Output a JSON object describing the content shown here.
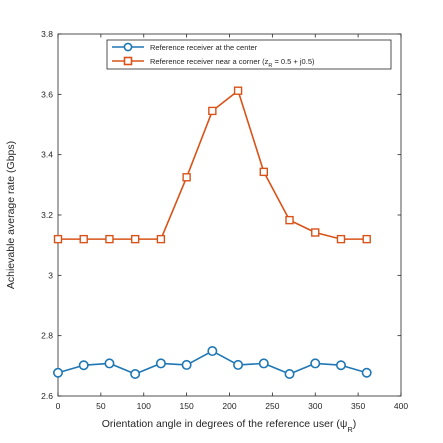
{
  "chart_data": {
    "type": "line",
    "xlabel": "Orientation angle in degrees of the reference user (ψ",
    "xlabel_sub": "R",
    "xlabel_close": ")",
    "ylabel": "Achievable average rate (Gbps)",
    "xlim": [
      0,
      400
    ],
    "ylim": [
      2.6,
      3.8
    ],
    "xticks": [
      0,
      50,
      100,
      150,
      200,
      250,
      300,
      350,
      400
    ],
    "yticks": [
      2.6,
      2.8,
      3,
      3.2,
      3.4,
      3.6,
      3.8
    ],
    "ytick_labels": [
      "2.6",
      "2.8",
      "3",
      "3.2",
      "3.4",
      "3.6",
      "3.8"
    ],
    "grid": false,
    "legend_position": "top-right",
    "x": [
      0,
      30,
      60,
      90,
      120,
      150,
      180,
      210,
      240,
      270,
      300,
      330,
      360
    ],
    "series": [
      {
        "name": "Reference receiver at the center",
        "color": "#1f77b4",
        "marker": "circle",
        "values": [
          2.677,
          2.702,
          2.708,
          2.673,
          2.708,
          2.703,
          2.749,
          2.703,
          2.708,
          2.673,
          2.708,
          2.702,
          2.677
        ]
      },
      {
        "name_prefix": "Reference receiver near a corner (z",
        "name_sub": "R",
        "name_suffix": " = 0.5 + j0.5)",
        "color": "#d95319",
        "marker": "square",
        "values": [
          3.12,
          3.12,
          3.12,
          3.12,
          3.12,
          3.325,
          3.545,
          3.612,
          3.343,
          3.183,
          3.142,
          3.12,
          3.12
        ]
      }
    ]
  }
}
